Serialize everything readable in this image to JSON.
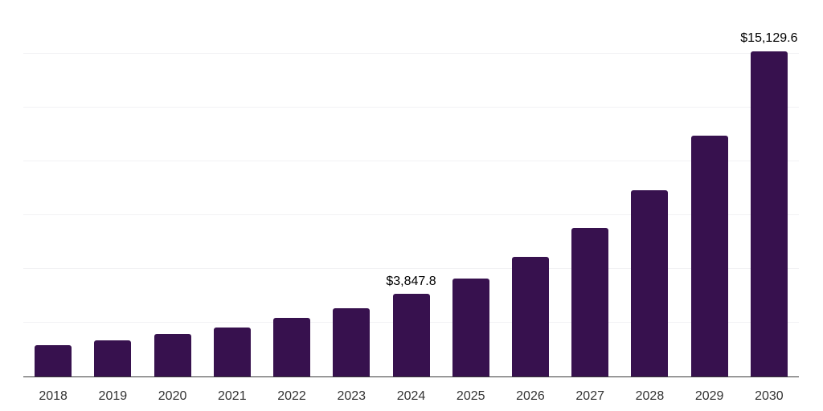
{
  "page": {
    "background": "#ffffff"
  },
  "chart": {
    "bar_color": "#37114E",
    "axis_line_color": "#3a3a3a",
    "gridline_color": "#f2f2f4",
    "x_label_color": "#333333",
    "data_label_color": "#000000"
  },
  "chart_data": {
    "type": "bar",
    "title": "",
    "xlabel": "",
    "ylabel": "",
    "categories": [
      "2018",
      "2019",
      "2020",
      "2021",
      "2022",
      "2023",
      "2024",
      "2025",
      "2026",
      "2027",
      "2028",
      "2029",
      "2030"
    ],
    "values": [
      1450,
      1700,
      1970,
      2280,
      2740,
      3190,
      3847.8,
      4560,
      5570,
      6900,
      8670,
      11200,
      15129.6
    ],
    "data_labels": [
      {
        "index": 6,
        "text": "$3,847.8"
      },
      {
        "index": 12,
        "text": "$15,129.6"
      }
    ],
    "ylim": [
      0,
      17500
    ],
    "grid_interval": 2500,
    "grid": true,
    "legend_position": "none",
    "y_axis_ticks_visible": false
  }
}
